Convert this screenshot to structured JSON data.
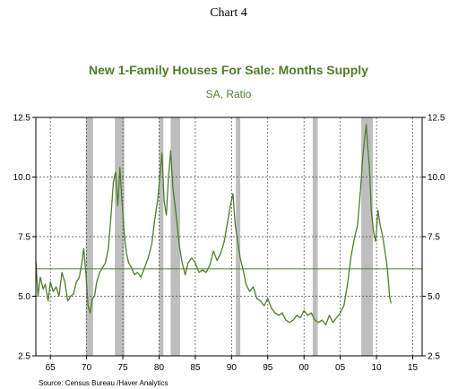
{
  "chart_number": "Chart 4",
  "colors": {
    "series": "#4f7d2a",
    "reference": "#4f7d2a",
    "recession": "#bebebe",
    "grid": "#444444"
  },
  "source": "Source: Census Bureau /Haver Analytics",
  "chart_data": {
    "type": "line",
    "title": "New 1-Family Houses For Sale: Months Supply",
    "subtitle": "SA, Ratio",
    "xlabel": "",
    "ylabel": "",
    "xlim": [
      1963.0,
      2016.3
    ],
    "ylim": [
      2.5,
      12.5
    ],
    "y_ticks": [
      2.5,
      5.0,
      7.5,
      10.0,
      12.5
    ],
    "y_tick_labels": [
      "2.5",
      "5.0",
      "7.5",
      "10.0",
      "12.5"
    ],
    "x_ticks": [
      1965,
      1970,
      1975,
      1980,
      1985,
      1990,
      1995,
      2000,
      2005,
      2010,
      2015
    ],
    "x_tick_labels": [
      "65",
      "70",
      "75",
      "80",
      "85",
      "90",
      "95",
      "00",
      "05",
      "10",
      "15"
    ],
    "grid": true,
    "axes_both_sides": true,
    "reference_line": {
      "y": 6.15
    },
    "shaded_periods": [
      [
        1969.9,
        1970.9
      ],
      [
        1973.9,
        1975.2
      ],
      [
        1980.0,
        1980.6
      ],
      [
        1981.6,
        1982.9
      ],
      [
        1990.6,
        1991.2
      ],
      [
        2001.2,
        2001.9
      ],
      [
        2007.9,
        2009.5
      ]
    ],
    "series": [
      {
        "x": [
          1963.0,
          1963.3,
          1963.6,
          1964.0,
          1964.3,
          1964.7,
          1965.0,
          1965.4,
          1965.8,
          1966.2,
          1966.6,
          1967.0,
          1967.4,
          1967.8,
          1968.2,
          1968.6,
          1969.0,
          1969.3,
          1969.6,
          1969.9,
          1970.2,
          1970.5,
          1970.8,
          1971.1,
          1971.4,
          1971.8,
          1972.2,
          1972.6,
          1973.0,
          1973.4,
          1973.7,
          1974.0,
          1974.3,
          1974.6,
          1974.9,
          1975.2,
          1975.5,
          1975.8,
          1976.2,
          1976.6,
          1977.0,
          1977.5,
          1978.0,
          1978.5,
          1979.0,
          1979.4,
          1979.8,
          1980.1,
          1980.4,
          1980.7,
          1981.0,
          1981.3,
          1981.6,
          1981.9,
          1982.2,
          1982.5,
          1982.8,
          1983.2,
          1983.6,
          1984.0,
          1984.5,
          1985.0,
          1985.5,
          1986.0,
          1986.5,
          1987.0,
          1987.5,
          1988.0,
          1988.5,
          1989.0,
          1989.5,
          1989.9,
          1990.2,
          1990.5,
          1990.8,
          1991.2,
          1991.6,
          1992.0,
          1992.5,
          1993.0,
          1993.5,
          1994.0,
          1994.5,
          1995.0,
          1995.5,
          1996.0,
          1996.5,
          1997.0,
          1997.5,
          1998.0,
          1998.5,
          1999.0,
          1999.5,
          2000.0,
          2000.5,
          2001.0,
          2001.5,
          2002.0,
          2002.5,
          2003.0,
          2003.5,
          2004.0,
          2004.5,
          2005.0,
          2005.5,
          2006.0,
          2006.5,
          2007.0,
          2007.4,
          2007.8,
          2008.1,
          2008.4,
          2008.6,
          2008.8,
          2009.0,
          2009.3,
          2009.6,
          2009.9,
          2010.2,
          2010.5,
          2010.8,
          2011.1,
          2011.4,
          2011.6,
          2011.8,
          2012.0
        ],
        "values": [
          6.5,
          5.0,
          5.8,
          5.3,
          5.5,
          4.8,
          5.6,
          5.2,
          5.4,
          5.0,
          6.0,
          5.6,
          4.8,
          5.0,
          5.1,
          5.6,
          5.8,
          6.3,
          7.0,
          6.0,
          4.6,
          4.3,
          4.9,
          5.0,
          5.6,
          6.0,
          6.2,
          6.4,
          7.0,
          8.5,
          9.8,
          10.2,
          8.8,
          10.4,
          8.9,
          7.6,
          6.8,
          6.4,
          6.2,
          5.9,
          6.0,
          5.8,
          6.2,
          6.6,
          7.2,
          8.2,
          9.0,
          10.0,
          11.0,
          9.0,
          8.4,
          10.0,
          11.1,
          9.6,
          8.8,
          8.0,
          7.1,
          6.4,
          5.9,
          6.4,
          6.6,
          6.4,
          6.0,
          6.1,
          6.0,
          6.3,
          6.9,
          6.5,
          6.8,
          7.3,
          8.2,
          8.9,
          9.3,
          8.0,
          7.4,
          6.6,
          6.1,
          5.5,
          5.2,
          5.4,
          4.9,
          4.8,
          4.6,
          4.9,
          4.5,
          4.3,
          4.2,
          4.3,
          4.0,
          3.9,
          4.0,
          4.2,
          4.1,
          4.4,
          4.2,
          4.3,
          4.0,
          3.9,
          4.0,
          3.8,
          4.2,
          3.9,
          4.1,
          4.3,
          4.6,
          5.5,
          6.7,
          7.5,
          8.0,
          9.5,
          10.8,
          11.7,
          12.2,
          11.2,
          10.5,
          8.5,
          7.7,
          7.3,
          8.6,
          8.0,
          7.6,
          7.0,
          6.4,
          5.8,
          5.0,
          4.7
        ]
      }
    ]
  }
}
